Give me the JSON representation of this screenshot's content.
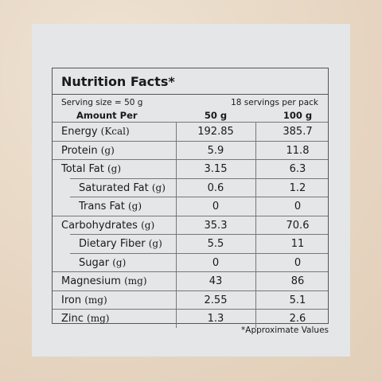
{
  "label": {
    "title": "Nutrition Facts*",
    "serving_size": "Serving size = 50 g",
    "servings_per_pack": "18 servings per pack",
    "header": [
      "Amount Per",
      "50 g",
      "100 g"
    ],
    "rows": [
      {
        "name": "Energy",
        "unit": "(Kcal)",
        "values": [
          "192.85",
          "385.7"
        ]
      },
      {
        "name": "Protein",
        "unit": "(g)",
        "values": [
          "5.9",
          "11.8"
        ]
      },
      {
        "name": "Total Fat",
        "unit": "(g)",
        "values": [
          "3.15",
          "6.3"
        ],
        "subrows": [
          {
            "name": "Saturated Fat",
            "unit": "(g)",
            "values": [
              "0.6",
              "1.2"
            ]
          },
          {
            "name": "Trans Fat",
            "unit": "(g)",
            "values": [
              "0",
              "0"
            ]
          }
        ]
      },
      {
        "name": "Carbohydrates",
        "unit": "(g)",
        "values": [
          "35.3",
          "70.6"
        ],
        "subrows": [
          {
            "name": "Dietary Fiber",
            "unit": "(g)",
            "values": [
              "5.5",
              "11"
            ]
          },
          {
            "name": "Sugar",
            "unit": "(g)",
            "values": [
              "0",
              "0"
            ]
          }
        ]
      },
      {
        "name": "Magnesium",
        "unit": "(mg)",
        "values": [
          "43",
          "86"
        ]
      },
      {
        "name": "Iron",
        "unit": "(mg)",
        "values": [
          "2.55",
          "5.1"
        ]
      },
      {
        "name": "Zinc",
        "unit": "(mg)",
        "values": [
          "1.3",
          "2.6"
        ]
      }
    ],
    "footnote": "*Approximate Values"
  }
}
